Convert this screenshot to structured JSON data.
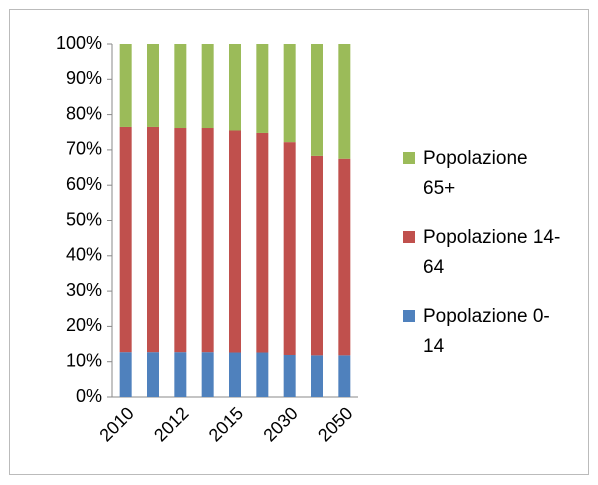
{
  "chart_data": {
    "type": "stacked_bar",
    "categories": [
      "2010",
      null,
      "2012",
      null,
      "2015",
      null,
      "2030",
      null,
      "2050"
    ],
    "series": [
      {
        "name": "Popolazione 0-14",
        "color": "#4f81bd",
        "values": [
          12.7,
          12.7,
          12.7,
          12.7,
          12.6,
          12.6,
          11.9,
          11.8,
          11.8
        ]
      },
      {
        "name": "Popolazione 14-64",
        "color": "#c0504d",
        "values": [
          63.8,
          63.8,
          63.5,
          63.5,
          62.9,
          62.2,
          60.3,
          56.5,
          55.7
        ]
      },
      {
        "name": "Popolazione 65+",
        "color": "#9bbb59",
        "values": [
          23.5,
          23.5,
          23.8,
          23.8,
          24.5,
          25.2,
          27.8,
          31.7,
          32.5
        ]
      }
    ],
    "ylim": [
      0,
      100
    ],
    "yticks": [
      {
        "value": 0,
        "label": "0%"
      },
      {
        "value": 10,
        "label": "10%"
      },
      {
        "value": 20,
        "label": "20%"
      },
      {
        "value": 30,
        "label": "30%"
      },
      {
        "value": 40,
        "label": "40%"
      },
      {
        "value": 50,
        "label": "50%"
      },
      {
        "value": 60,
        "label": "60%"
      },
      {
        "value": 70,
        "label": "70%"
      },
      {
        "value": 80,
        "label": "80%"
      },
      {
        "value": 90,
        "label": "90%"
      },
      {
        "value": 100,
        "label": "100%"
      }
    ],
    "legend": "right"
  }
}
